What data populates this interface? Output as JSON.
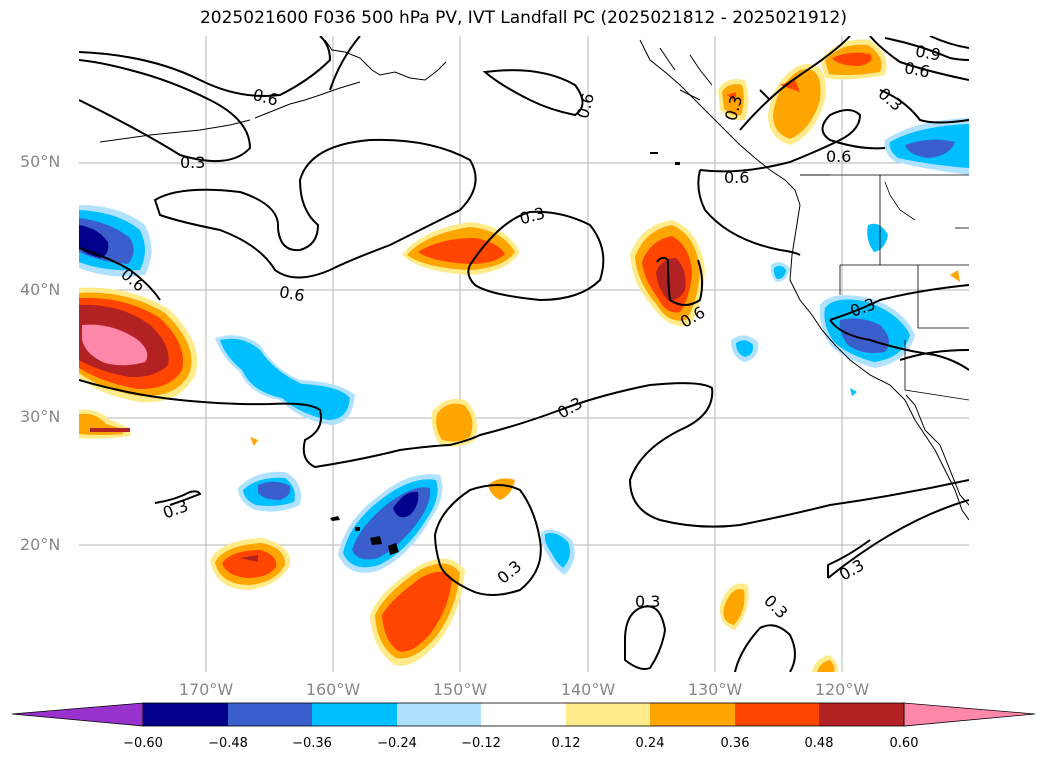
{
  "title": "2025021600 F036 500 hPa PV, IVT Landfall PC (2025021812 - 2025021912)",
  "lat_labels": [
    "50°N",
    "40°N",
    "30°N",
    "20°N"
  ],
  "lon_labels": [
    "170°W",
    "160°W",
    "150°W",
    "140°W",
    "130°W",
    "120°W"
  ],
  "contour_labels": [
    "0.6",
    "0.3",
    "0.6",
    "0.6",
    "0.3",
    "0.3",
    "0.6",
    "0.6",
    "0.6",
    "0.6",
    "0.3",
    "0.6",
    "0.3",
    "0.3",
    "0.3",
    "0.3",
    "0.3",
    "0.3",
    "0.3",
    "0.3",
    "0.6",
    "0.9"
  ],
  "colorbar": {
    "ticks": [
      "−0.60",
      "−0.48",
      "−0.36",
      "−0.24",
      "−0.12",
      "0.12",
      "0.24",
      "0.36",
      "0.48",
      "0.60"
    ],
    "colors": [
      "#9932cc",
      "#00008b",
      "#3a5fcd",
      "#00bfff",
      "#b0e2ff",
      "#ffffff",
      "#ffeb8a",
      "#ffa500",
      "#ff4500",
      "#b22222",
      "#ff88aa"
    ]
  }
}
